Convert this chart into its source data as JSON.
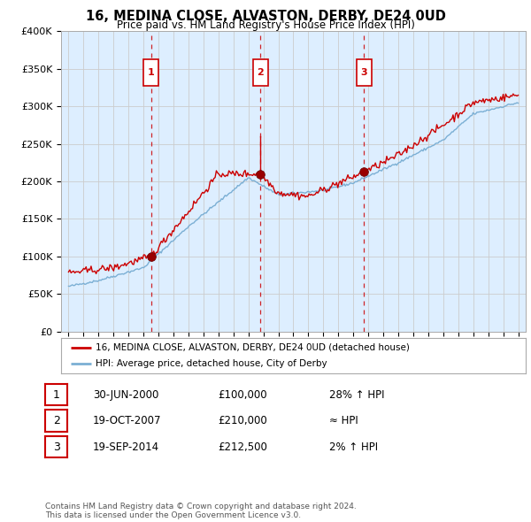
{
  "title": "16, MEDINA CLOSE, ALVASTON, DERBY, DE24 0UD",
  "subtitle": "Price paid vs. HM Land Registry's House Price Index (HPI)",
  "ylabel_ticks": [
    "£0",
    "£50K",
    "£100K",
    "£150K",
    "£200K",
    "£250K",
    "£300K",
    "£350K",
    "£400K"
  ],
  "ytick_values": [
    0,
    50000,
    100000,
    150000,
    200000,
    250000,
    300000,
    350000,
    400000
  ],
  "ylim": [
    0,
    400000
  ],
  "xlim_start": 1994.5,
  "xlim_end": 2025.5,
  "sale_dates": [
    2000.5,
    2007.8,
    2014.72
  ],
  "sale_prices": [
    100000,
    210000,
    212500
  ],
  "sale_labels": [
    "1",
    "2",
    "3"
  ],
  "red_line_color": "#cc0000",
  "blue_line_color": "#7bafd4",
  "plot_bg_color": "#ddeeff",
  "dashed_line_color": "#cc0000",
  "legend_entries": [
    "16, MEDINA CLOSE, ALVASTON, DERBY, DE24 0UD (detached house)",
    "HPI: Average price, detached house, City of Derby"
  ],
  "table_rows": [
    {
      "num": "1",
      "date": "30-JUN-2000",
      "price": "£100,000",
      "hpi": "28% ↑ HPI"
    },
    {
      "num": "2",
      "date": "19-OCT-2007",
      "price": "£210,000",
      "hpi": "≈ HPI"
    },
    {
      "num": "3",
      "date": "19-SEP-2014",
      "price": "£212,500",
      "hpi": "2% ↑ HPI"
    }
  ],
  "footer": "Contains HM Land Registry data © Crown copyright and database right 2024.\nThis data is licensed under the Open Government Licence v3.0.",
  "background_color": "#ffffff",
  "grid_color": "#cccccc"
}
